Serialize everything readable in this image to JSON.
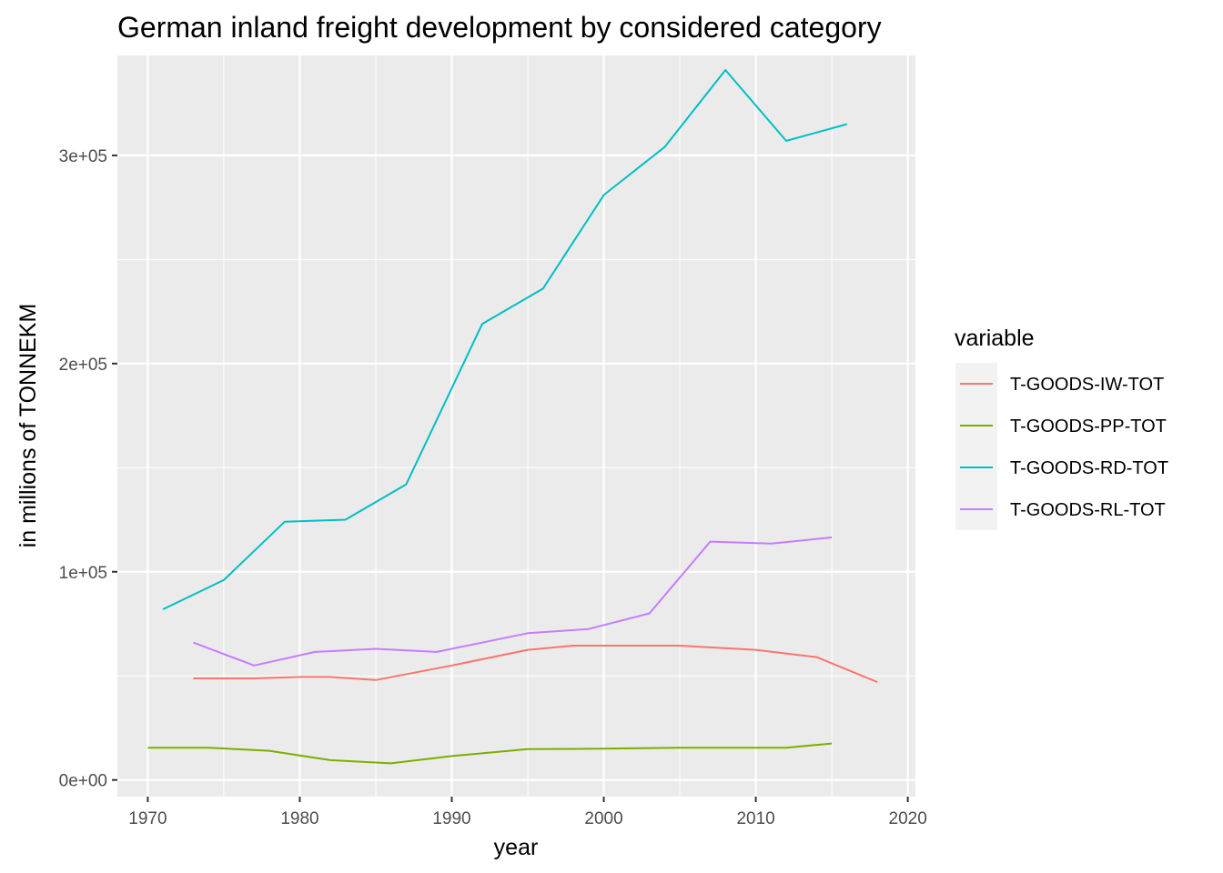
{
  "chart_data": {
    "type": "line",
    "title": "German inland freight development by considered category",
    "xlabel": "year",
    "ylabel": "in millions of TONNEKM",
    "xlim": [
      1968,
      2020.5
    ],
    "ylim": [
      -8000,
      348000
    ],
    "x_ticks": [
      1970,
      1980,
      1990,
      2000,
      2010,
      2020
    ],
    "x_tick_labels": [
      "1970",
      "1980",
      "1990",
      "2000",
      "2010",
      "2020"
    ],
    "y_ticks": [
      0,
      100000,
      200000,
      300000
    ],
    "y_tick_labels": [
      "0e+00",
      "1e+05",
      "2e+05",
      "3e+05"
    ],
    "grid": true,
    "legend_title": "variable",
    "legend_position": "right",
    "series": [
      {
        "name": "T-GOODS-IW-TOT",
        "color": "#F8766D",
        "points": [
          [
            1973,
            48800
          ],
          [
            1977,
            48800
          ],
          [
            1980,
            49500
          ],
          [
            1982,
            49500
          ],
          [
            1985,
            48000
          ],
          [
            1990,
            55000
          ],
          [
            1995,
            62500
          ],
          [
            1998,
            64500
          ],
          [
            2005,
            64500
          ],
          [
            2010,
            62500
          ],
          [
            2014,
            59000
          ],
          [
            2018,
            47000
          ]
        ]
      },
      {
        "name": "T-GOODS-PP-TOT",
        "color": "#7CAE00",
        "points": [
          [
            1970,
            15500
          ],
          [
            1974,
            15500
          ],
          [
            1978,
            14000
          ],
          [
            1982,
            9500
          ],
          [
            1986,
            8000
          ],
          [
            1990,
            11500
          ],
          [
            1995,
            14800
          ],
          [
            2000,
            15000
          ],
          [
            2005,
            15500
          ],
          [
            2012,
            15500
          ],
          [
            2015,
            17500
          ]
        ]
      },
      {
        "name": "T-GOODS-RD-TOT",
        "color": "#00BFC4",
        "points": [
          [
            1971,
            82000
          ],
          [
            1975,
            96000
          ],
          [
            1979,
            124000
          ],
          [
            1983,
            125000
          ],
          [
            1987,
            142000
          ],
          [
            1992,
            219000
          ],
          [
            1996,
            236000
          ],
          [
            2000,
            281000
          ],
          [
            2004,
            304000
          ],
          [
            2008,
            341000
          ],
          [
            2012,
            307000
          ],
          [
            2016,
            315000
          ]
        ]
      },
      {
        "name": "T-GOODS-RL-TOT",
        "color": "#C77CFF",
        "points": [
          [
            1973,
            66000
          ],
          [
            1977,
            55000
          ],
          [
            1981,
            61500
          ],
          [
            1985,
            63000
          ],
          [
            1989,
            61500
          ],
          [
            1995,
            70500
          ],
          [
            1999,
            72500
          ],
          [
            2003,
            80000
          ],
          [
            2007,
            114500
          ],
          [
            2011,
            113500
          ],
          [
            2015,
            116500
          ]
        ]
      }
    ]
  }
}
